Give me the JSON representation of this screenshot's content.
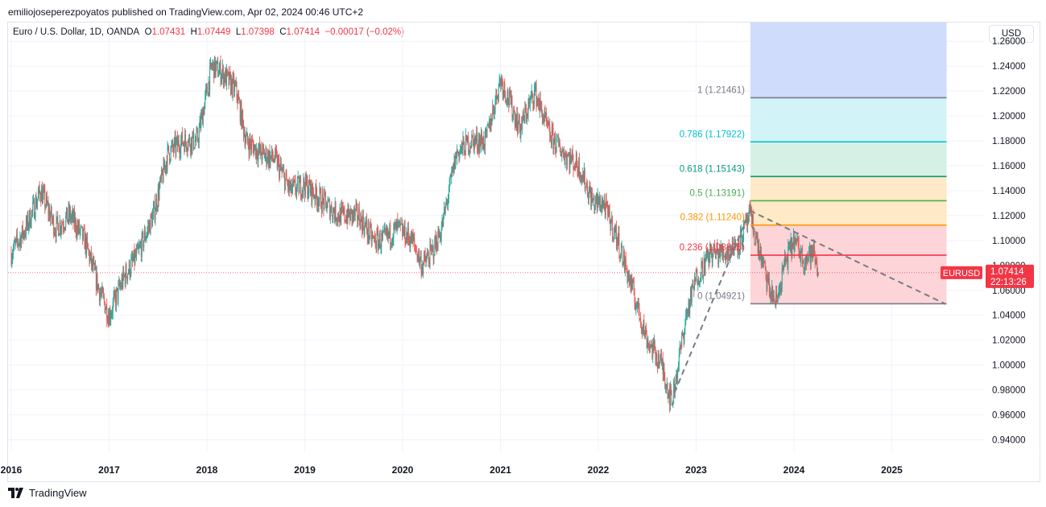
{
  "publisher_line": "emiliojoseperezpoyatos published on TradingView.com, Apr 02, 2024 00:46 UTC+2",
  "symbol_line": {
    "name": "Euro / U.S. Dollar, 1D, OANDA",
    "o_label": "O",
    "o": "1.07431",
    "h_label": "H",
    "h": "1.07449",
    "l_label": "L",
    "l": "1.07398",
    "c_label": "C",
    "c": "1.07414",
    "change": "−0.00017 (−0.02%)"
  },
  "currency": "USD",
  "brand": "TradingView",
  "colors": {
    "up": "#26a69a",
    "down": "#ef5350",
    "price_label": "#f23645"
  },
  "price_tag": {
    "symbol": "EURUSD",
    "price": "1.07414",
    "countdown": "22:13:26"
  },
  "chart_data": {
    "type": "candlestick",
    "symbol": "EURUSD",
    "interval": "1D",
    "x_ticks": [
      "2016",
      "2017",
      "2018",
      "2019",
      "2020",
      "2021",
      "2022",
      "2023",
      "2024",
      "2025"
    ],
    "y_ticks": [
      "1.26000",
      "1.24000",
      "1.22000",
      "1.20000",
      "1.18000",
      "1.16000",
      "1.14000",
      "1.12000",
      "1.10000",
      "1.08000",
      "1.06000",
      "1.04000",
      "1.02000",
      "1.00000",
      "0.98000",
      "0.96000",
      "0.94000"
    ],
    "ylim": [
      0.93,
      1.275
    ],
    "grid": true,
    "last_price": 1.07414,
    "price_path": [
      [
        2016.0,
        1.09
      ],
      [
        2016.15,
        1.11
      ],
      [
        2016.3,
        1.14
      ],
      [
        2016.45,
        1.11
      ],
      [
        2016.6,
        1.12
      ],
      [
        2016.75,
        1.1
      ],
      [
        2016.9,
        1.06
      ],
      [
        2017.0,
        1.04
      ],
      [
        2017.15,
        1.07
      ],
      [
        2017.3,
        1.09
      ],
      [
        2017.45,
        1.12
      ],
      [
        2017.6,
        1.17
      ],
      [
        2017.75,
        1.18
      ],
      [
        2017.9,
        1.18
      ],
      [
        2018.05,
        1.24
      ],
      [
        2018.15,
        1.235
      ],
      [
        2018.3,
        1.22
      ],
      [
        2018.4,
        1.18
      ],
      [
        2018.55,
        1.17
      ],
      [
        2018.7,
        1.165
      ],
      [
        2018.85,
        1.14
      ],
      [
        2019.0,
        1.145
      ],
      [
        2019.2,
        1.13
      ],
      [
        2019.35,
        1.12
      ],
      [
        2019.55,
        1.12
      ],
      [
        2019.7,
        1.1
      ],
      [
        2019.8,
        1.1
      ],
      [
        2019.95,
        1.11
      ],
      [
        2020.1,
        1.1
      ],
      [
        2020.2,
        1.08
      ],
      [
        2020.3,
        1.09
      ],
      [
        2020.4,
        1.11
      ],
      [
        2020.55,
        1.17
      ],
      [
        2020.7,
        1.18
      ],
      [
        2020.85,
        1.18
      ],
      [
        2021.0,
        1.23
      ],
      [
        2021.2,
        1.19
      ],
      [
        2021.35,
        1.22
      ],
      [
        2021.5,
        1.185
      ],
      [
        2021.65,
        1.17
      ],
      [
        2021.8,
        1.16
      ],
      [
        2021.95,
        1.13
      ],
      [
        2022.05,
        1.13
      ],
      [
        2022.2,
        1.1
      ],
      [
        2022.35,
        1.06
      ],
      [
        2022.5,
        1.02
      ],
      [
        2022.65,
        1.0
      ],
      [
        2022.75,
        0.97
      ],
      [
        2022.9,
        1.04
      ],
      [
        2023.0,
        1.07
      ],
      [
        2023.15,
        1.09
      ],
      [
        2023.3,
        1.09
      ],
      [
        2023.45,
        1.1
      ],
      [
        2023.55,
        1.12
      ],
      [
        2023.65,
        1.09
      ],
      [
        2023.75,
        1.06
      ],
      [
        2023.82,
        1.05
      ],
      [
        2023.9,
        1.08
      ],
      [
        2024.0,
        1.1
      ],
      [
        2024.1,
        1.085
      ],
      [
        2024.2,
        1.09
      ],
      [
        2024.25,
        1.074
      ]
    ],
    "fibonacci": {
      "levels": [
        {
          "label": "1 (1.21461)",
          "value": 1.21461,
          "line": "#787b86",
          "fill": "#e1e1e3"
        },
        {
          "label": "0.786 (1.17922)",
          "value": 1.17922,
          "line": "#00bcd4",
          "fill": "#d2f3f8"
        },
        {
          "label": "0.618 (1.15143)",
          "value": 1.15143,
          "line": "#089981",
          "fill": "#d6f0e6"
        },
        {
          "label": "0.5 (1.13191)",
          "value": 1.13191,
          "line": "#4caf50",
          "fill": "#ffe9c6"
        },
        {
          "label": "0.382 (1.11240)",
          "value": 1.1124,
          "line": "#ff9800",
          "fill": "#ffe9c6"
        },
        {
          "label": "0.236 (1.08825)",
          "value": 1.08825,
          "line": "#f23645",
          "fill": "#fdd5d9"
        },
        {
          "label": "0 (1.04921)",
          "value": 1.04921,
          "line": "#787b86",
          "fill": "#fdd5d9"
        }
      ],
      "extension_fill": "#d0dcfc"
    },
    "trend_lines": [
      {
        "from": [
          2022.78,
          0.978
        ],
        "to": [
          2023.55,
          1.124
        ]
      },
      {
        "from": [
          2023.55,
          1.124
        ],
        "to": [
          2025.55,
          1.049
        ]
      }
    ]
  }
}
